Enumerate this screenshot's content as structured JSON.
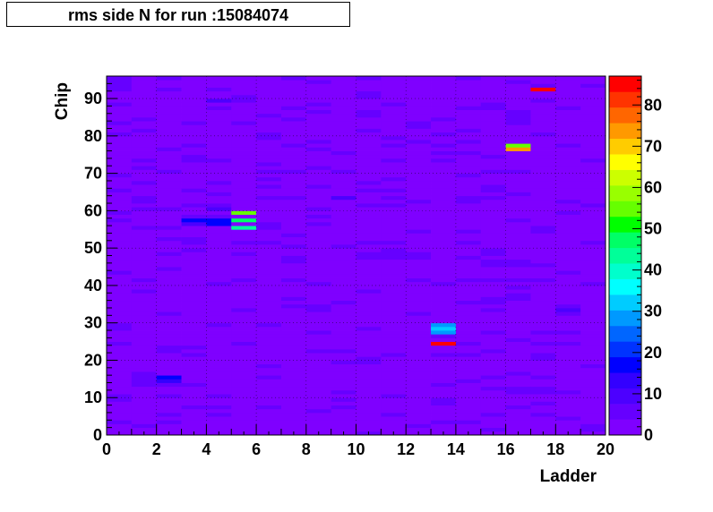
{
  "title": "rms side N for run :15084074",
  "chart_data": {
    "type": "heatmap",
    "title": "rms side N for run :15084074",
    "xlabel": "Ladder",
    "ylabel": "Chip",
    "xlim": [
      0,
      20
    ],
    "ylim": [
      0,
      96
    ],
    "zlim": [
      0,
      87
    ],
    "x_bins": 20,
    "y_bins": 96,
    "x_ticks": [
      0,
      2,
      4,
      6,
      8,
      10,
      12,
      14,
      16,
      18,
      20
    ],
    "y_ticks": [
      0,
      10,
      20,
      30,
      40,
      50,
      60,
      70,
      80,
      90
    ],
    "z_ticks": [
      0,
      10,
      20,
      30,
      40,
      50,
      60,
      70,
      80
    ],
    "grid": true,
    "palette": [
      "#7f00ff",
      "#6600ff",
      "#4c00ff",
      "#3300ff",
      "#0000ff",
      "#0033ff",
      "#0066ff",
      "#0099ff",
      "#00ccff",
      "#00ffff",
      "#00ffcc",
      "#00ff99",
      "#00ff66",
      "#00ff00",
      "#66ff00",
      "#99ff00",
      "#ccff00",
      "#ffff00",
      "#ffcc00",
      "#ff9900",
      "#ff6600",
      "#ff3300",
      "#ff0000"
    ],
    "background_value": 3,
    "hot_cells": [
      {
        "ladder": 2,
        "chip": 14,
        "value": 14
      },
      {
        "ladder": 2,
        "chip": 15,
        "value": 18
      },
      {
        "ladder": 3,
        "chip": 56,
        "value": 10
      },
      {
        "ladder": 3,
        "chip": 57,
        "value": 18
      },
      {
        "ladder": 4,
        "chip": 56,
        "value": 16
      },
      {
        "ladder": 4,
        "chip": 57,
        "value": 17
      },
      {
        "ladder": 4,
        "chip": 60,
        "value": 8
      },
      {
        "ladder": 4,
        "chip": 61,
        "value": 7
      },
      {
        "ladder": 4,
        "chip": 89,
        "value": 8
      },
      {
        "ladder": 5,
        "chip": 55,
        "value": 45
      },
      {
        "ladder": 5,
        "chip": 57,
        "value": 48
      },
      {
        "ladder": 5,
        "chip": 59,
        "value": 55
      },
      {
        "ladder": 9,
        "chip": 63,
        "value": 8
      },
      {
        "ladder": 13,
        "chip": 24,
        "value": 85
      },
      {
        "ladder": 13,
        "chip": 27,
        "value": 30
      },
      {
        "ladder": 13,
        "chip": 28,
        "value": 32
      },
      {
        "ladder": 13,
        "chip": 29,
        "value": 28
      },
      {
        "ladder": 16,
        "chip": 76,
        "value": 75
      },
      {
        "ladder": 16,
        "chip": 77,
        "value": 55
      },
      {
        "ladder": 17,
        "chip": 92,
        "value": 85
      },
      {
        "ladder": 18,
        "chip": 33,
        "value": 8
      }
    ]
  }
}
